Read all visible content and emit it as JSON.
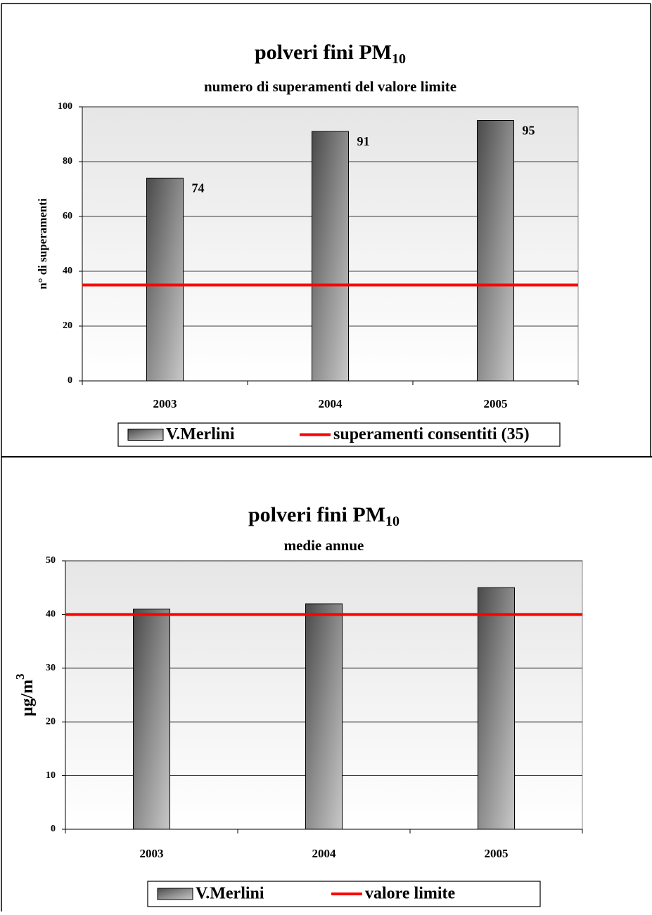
{
  "chart_data": [
    {
      "type": "bar",
      "title": "polveri fini  PM",
      "title_subscript": "10",
      "subtitle": "numero di superamenti del valore limite",
      "y_label": "n° di superamenti",
      "categories": [
        "2003",
        "2004",
        "2005"
      ],
      "series": [
        {
          "name": "V.Merlini",
          "color": "#808080",
          "values": [
            74,
            91,
            95
          ]
        }
      ],
      "data_labels": true,
      "reference_line": {
        "name": "superamenti consentiti (35)",
        "value": 35,
        "color": "#ff0000"
      },
      "ylim": [
        0,
        100
      ],
      "yticks": [
        0,
        20,
        40,
        60,
        80,
        100
      ],
      "grid": true
    },
    {
      "type": "bar",
      "title": "polveri fini  PM",
      "title_subscript": "10",
      "subtitle": "medie annue",
      "y_label": "µg/m",
      "y_label_superscript": "3",
      "categories": [
        "2003",
        "2004",
        "2005"
      ],
      "series": [
        {
          "name": "V.Merlini",
          "color": "#808080",
          "values": [
            41,
            42,
            45
          ]
        }
      ],
      "data_labels": false,
      "reference_line": {
        "name": "valore limite",
        "value": 40,
        "color": "#ff0000"
      },
      "ylim": [
        0,
        50
      ],
      "yticks": [
        0,
        10,
        20,
        30,
        40,
        50
      ],
      "grid": true
    }
  ]
}
